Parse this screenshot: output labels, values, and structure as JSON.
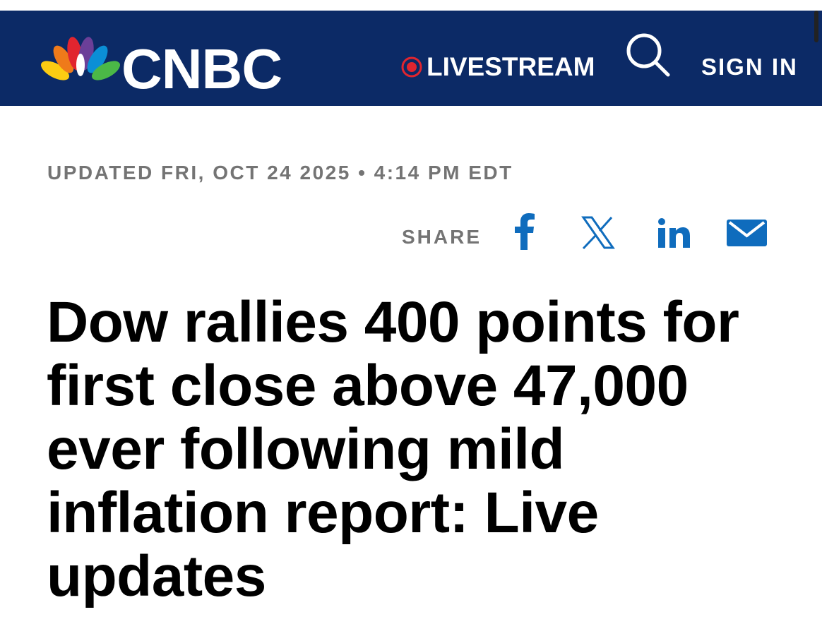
{
  "header": {
    "logo": "CNBC",
    "livestream": "LIVESTREAM",
    "sign_in": "SIGN IN"
  },
  "article": {
    "updated": "UPDATED FRI, OCT 24 2025 • 4:14 PM EDT",
    "share_label": "SHARE",
    "headline": "Dow rallies 400 points for first close above 47,000 ever following mild inflation report: Live updates"
  }
}
